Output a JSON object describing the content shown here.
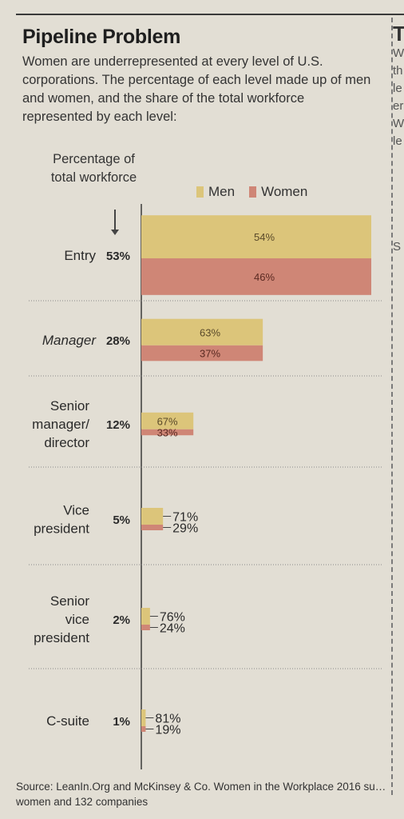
{
  "title": "Pipeline Problem",
  "subtitle": "Women are underrepresented at every level of U.S. corporations. The percentage of each level made up of men and women, and the share of the total workforce represented by each level:",
  "axis_header": "Percentage of total workforce",
  "legend": {
    "men": "Men",
    "women": "Women"
  },
  "colors": {
    "men": "#dcc57a",
    "women": "#cf8676",
    "text": "#2a2a2a"
  },
  "source": "Source: LeanIn.Org and McKinsey & Co. Women in the Workplace 2016 su… women and 132 companies",
  "side_fragments": [
    "T",
    "W",
    "th",
    "le",
    "er",
    "W",
    "le",
    "S"
  ],
  "chart_data": {
    "type": "bar",
    "title": "Pipeline Problem",
    "categories": [
      "Entry",
      "Manager",
      "Senior manager/ director",
      "Vice president",
      "Senior vice president",
      "C-suite"
    ],
    "workforce_share": [
      53,
      28,
      12,
      5,
      2,
      1
    ],
    "workforce_labels": [
      "53%",
      "28%",
      "12%",
      "5%",
      "2%",
      "1%"
    ],
    "series": [
      {
        "name": "Men",
        "values": [
          54,
          63,
          67,
          71,
          76,
          81
        ],
        "labels": [
          "54%",
          "63%",
          "67%",
          "71%",
          "76%",
          "81%"
        ]
      },
      {
        "name": "Women",
        "values": [
          46,
          37,
          33,
          29,
          24,
          19
        ],
        "labels": [
          "46%",
          "37%",
          "33%",
          "29%",
          "24%",
          "19%"
        ]
      }
    ],
    "legend_position": "top-right"
  }
}
